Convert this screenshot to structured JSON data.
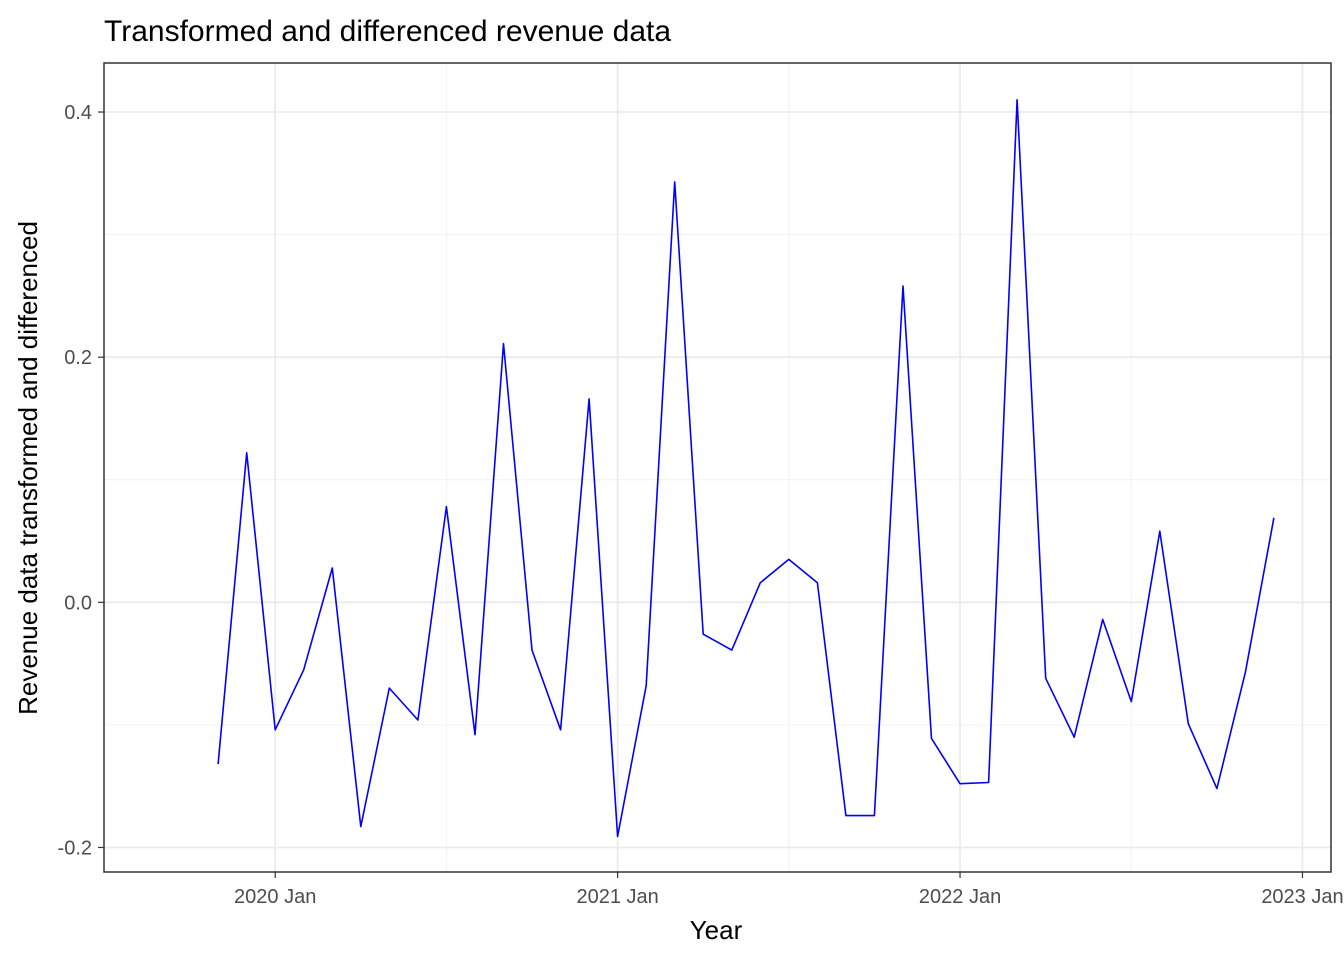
{
  "chart_data": {
    "type": "line",
    "title": "Transformed and differenced revenue data",
    "xlabel": "Year",
    "ylabel": "Revenue data transformed and differenced",
    "line_color": "#0000ff",
    "grid": true,
    "x_ticks": [
      {
        "label": "2020 Jan",
        "date": "2020-01"
      },
      {
        "label": "2021 Jan",
        "date": "2021-01"
      },
      {
        "label": "2022 Jan",
        "date": "2022-01"
      },
      {
        "label": "2023 Jan",
        "date": "2023-01"
      }
    ],
    "y_ticks": [
      -0.2,
      0.0,
      0.2,
      0.4
    ],
    "y_tick_labels": [
      "-0.2",
      "0.0",
      "0.2",
      "0.4"
    ],
    "xlim": [
      "2019-07",
      "2023-02"
    ],
    "ylim": [
      -0.22,
      0.44
    ],
    "x": [
      "2019-11",
      "2019-12",
      "2020-01",
      "2020-02",
      "2020-03",
      "2020-04",
      "2020-05",
      "2020-06",
      "2020-07",
      "2020-08",
      "2020-09",
      "2020-10",
      "2020-11",
      "2020-12",
      "2021-01",
      "2021-02",
      "2021-03",
      "2021-04",
      "2021-05",
      "2021-06",
      "2021-07",
      "2021-08",
      "2021-09",
      "2021-10",
      "2021-11",
      "2021-12",
      "2022-01",
      "2022-02",
      "2022-03",
      "2022-04",
      "2022-05",
      "2022-06",
      "2022-07",
      "2022-08",
      "2022-09",
      "2022-10",
      "2022-11",
      "2022-12"
    ],
    "values": [
      -0.132,
      0.122,
      -0.104,
      -0.055,
      0.028,
      -0.183,
      -0.07,
      -0.096,
      0.078,
      -0.108,
      0.211,
      -0.039,
      -0.104,
      0.166,
      -0.191,
      -0.068,
      0.343,
      -0.026,
      -0.039,
      0.016,
      0.035,
      0.016,
      -0.174,
      -0.174,
      0.258,
      -0.111,
      -0.148,
      -0.147,
      0.41,
      -0.062,
      -0.11,
      -0.014,
      -0.081,
      0.058,
      -0.099,
      -0.152,
      -0.057,
      0.069
    ]
  }
}
